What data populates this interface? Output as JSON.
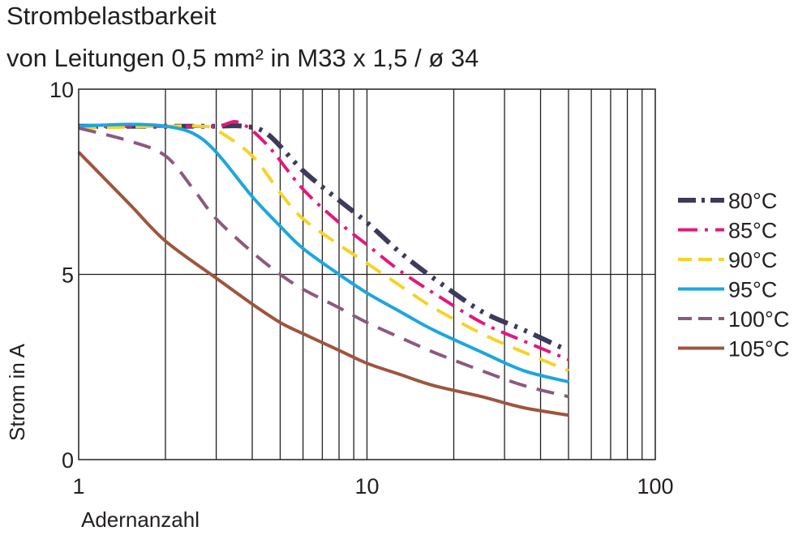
{
  "chart_data": {
    "type": "line",
    "title": "Strombelastbarkeit",
    "subtitle": "von Leitungen 0,5 mm² in M33 x 1,5 / ø 34",
    "xlabel": "Adernanzahl",
    "ylabel": "Strom in A",
    "x_scale": "log",
    "xlim": [
      1,
      100
    ],
    "ylim": [
      0,
      10
    ],
    "x_ticks": [
      1,
      10,
      100
    ],
    "x_tick_labels": [
      "1",
      "10",
      "100"
    ],
    "y_ticks": [
      0,
      5,
      10
    ],
    "y_tick_labels": [
      "0",
      "5",
      "10"
    ],
    "grid": true,
    "legend_position": "right",
    "series": [
      {
        "name": "80°C",
        "color": "#3d3a5c",
        "dash": "dash-dot-dot",
        "x": [
          1,
          2,
          3,
          3.7,
          4.5,
          6,
          8,
          10,
          13,
          17,
          25,
          35,
          48
        ],
        "y": [
          9.0,
          9.0,
          9.0,
          9.0,
          8.8,
          7.8,
          7.0,
          6.4,
          5.6,
          4.9,
          4.0,
          3.5,
          3.0
        ]
      },
      {
        "name": "85°C",
        "color": "#e2197a",
        "dash": "dash-dot",
        "x": [
          1,
          2,
          3,
          3.6,
          4.5,
          6,
          8,
          10,
          13,
          17,
          25,
          35,
          50
        ],
        "y": [
          9.0,
          9.0,
          9.0,
          9.1,
          8.5,
          7.3,
          6.4,
          5.8,
          5.1,
          4.5,
          3.7,
          3.2,
          2.7
        ]
      },
      {
        "name": "90°C",
        "color": "#f5d328",
        "dash": "dash",
        "x": [
          1,
          2,
          2.6,
          3,
          4,
          5,
          6,
          8,
          10,
          13,
          17,
          25,
          35,
          50
        ],
        "y": [
          8.95,
          9.0,
          9.0,
          8.9,
          8.2,
          7.2,
          6.5,
          5.8,
          5.3,
          4.7,
          4.1,
          3.4,
          2.9,
          2.4
        ]
      },
      {
        "name": "95°C",
        "color": "#1da6dd",
        "dash": "solid",
        "x": [
          1,
          1.5,
          2,
          2.5,
          3,
          4,
          5,
          6,
          8,
          10,
          13,
          17,
          25,
          35,
          50
        ],
        "y": [
          9.0,
          9.05,
          9.0,
          8.8,
          8.3,
          7.1,
          6.3,
          5.7,
          5.0,
          4.5,
          4.0,
          3.5,
          2.9,
          2.4,
          2.1
        ]
      },
      {
        "name": "100°C",
        "color": "#8c5a7e",
        "dash": "dash",
        "x": [
          1,
          1.5,
          2,
          2.5,
          3,
          4,
          5,
          6,
          8,
          10,
          13,
          17,
          25,
          35,
          50
        ],
        "y": [
          8.95,
          8.6,
          8.2,
          7.3,
          6.5,
          5.6,
          5.0,
          4.6,
          4.1,
          3.7,
          3.3,
          2.9,
          2.4,
          2.0,
          1.7
        ]
      },
      {
        "name": "105°C",
        "color": "#9e553e",
        "dash": "solid",
        "x": [
          1,
          1.5,
          2,
          3,
          4,
          5,
          6,
          8,
          10,
          13,
          17,
          25,
          35,
          50
        ],
        "y": [
          8.3,
          6.9,
          5.9,
          4.9,
          4.2,
          3.7,
          3.4,
          2.95,
          2.6,
          2.3,
          2.0,
          1.7,
          1.4,
          1.2
        ]
      }
    ]
  }
}
